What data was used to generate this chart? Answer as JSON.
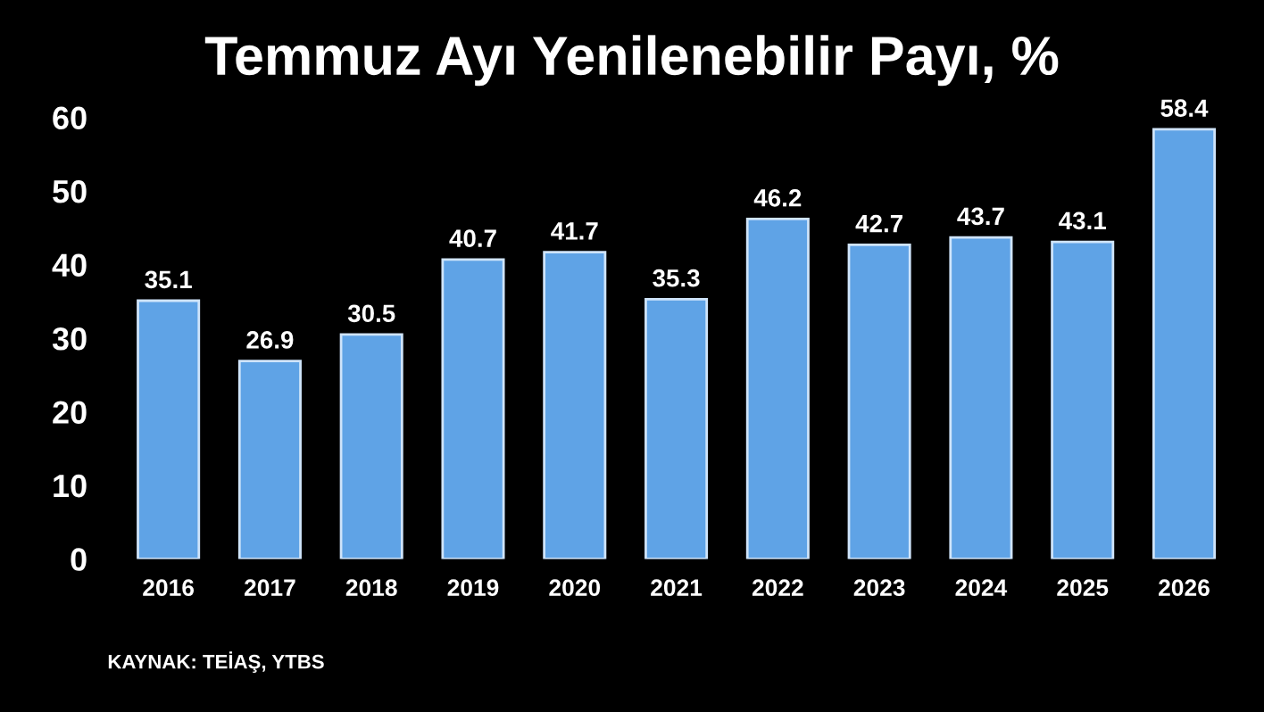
{
  "chart_data": {
    "type": "bar",
    "title": "Temmuz Ayı Yenilenebilir Payı, %",
    "categories": [
      "2016",
      "2017",
      "2018",
      "2019",
      "2020",
      "2021",
      "2022",
      "2023",
      "2024",
      "2025",
      "2026"
    ],
    "values": [
      35.1,
      26.9,
      30.5,
      40.7,
      41.7,
      35.3,
      46.2,
      42.7,
      43.7,
      43.1,
      58.4
    ],
    "color": "#5fa3e6",
    "ylim": [
      0,
      60
    ],
    "yticks": [
      0,
      10,
      20,
      30,
      40,
      50,
      60
    ],
    "grid": false,
    "data_labels": true,
    "annotations": [
      "KAYNAK: TEİAŞ, YTBS"
    ]
  }
}
